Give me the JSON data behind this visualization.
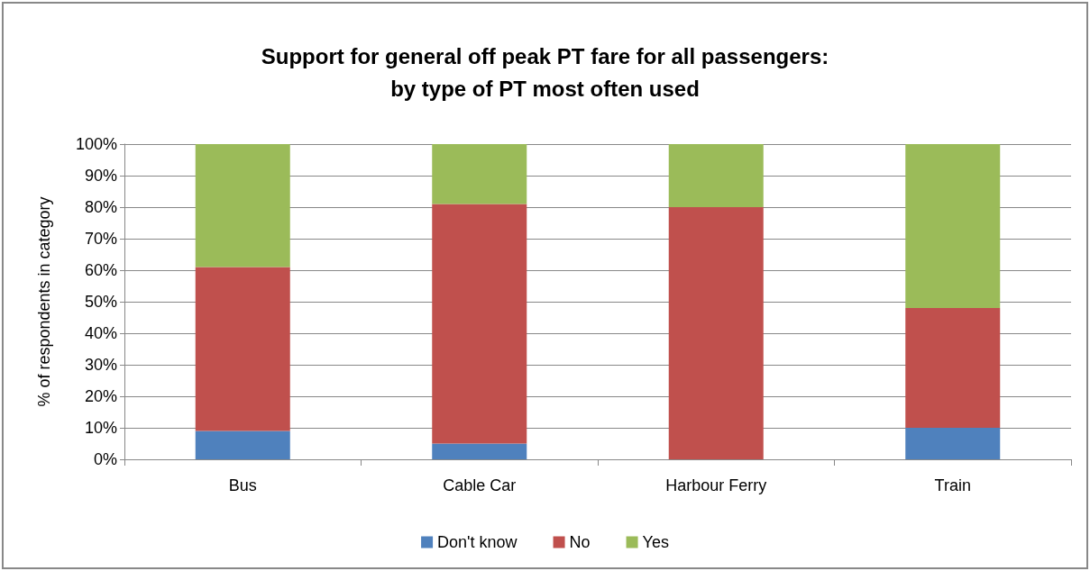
{
  "chart_data": {
    "type": "bar",
    "title": "Support for general off peak PT fare for all passengers:\nby type of PT most often used",
    "ylabel": "% of respondents in category",
    "categories": [
      "Bus",
      "Cable Car",
      "Harbour Ferry",
      "Train"
    ],
    "series": [
      {
        "name": "Don't know",
        "color": "#4f81bd",
        "values": [
          9,
          5,
          0,
          10
        ]
      },
      {
        "name": "No",
        "color": "#c0504d",
        "values": [
          52,
          76,
          80,
          38
        ]
      },
      {
        "name": "Yes",
        "color": "#9bbb59",
        "values": [
          39,
          19,
          20,
          52
        ]
      }
    ],
    "stacked": true,
    "ylim": [
      0,
      100
    ],
    "yticks": [
      {
        "value": 0,
        "label": "0%"
      },
      {
        "value": 10,
        "label": "10%"
      },
      {
        "value": 20,
        "label": "20%"
      },
      {
        "value": 30,
        "label": "30%"
      },
      {
        "value": 40,
        "label": "40%"
      },
      {
        "value": 50,
        "label": "50%"
      },
      {
        "value": 60,
        "label": "60%"
      },
      {
        "value": 70,
        "label": "70%"
      },
      {
        "value": 80,
        "label": "80%"
      },
      {
        "value": 90,
        "label": "90%"
      },
      {
        "value": 100,
        "label": "100%"
      }
    ],
    "grid": "y",
    "legend": "bottom"
  }
}
